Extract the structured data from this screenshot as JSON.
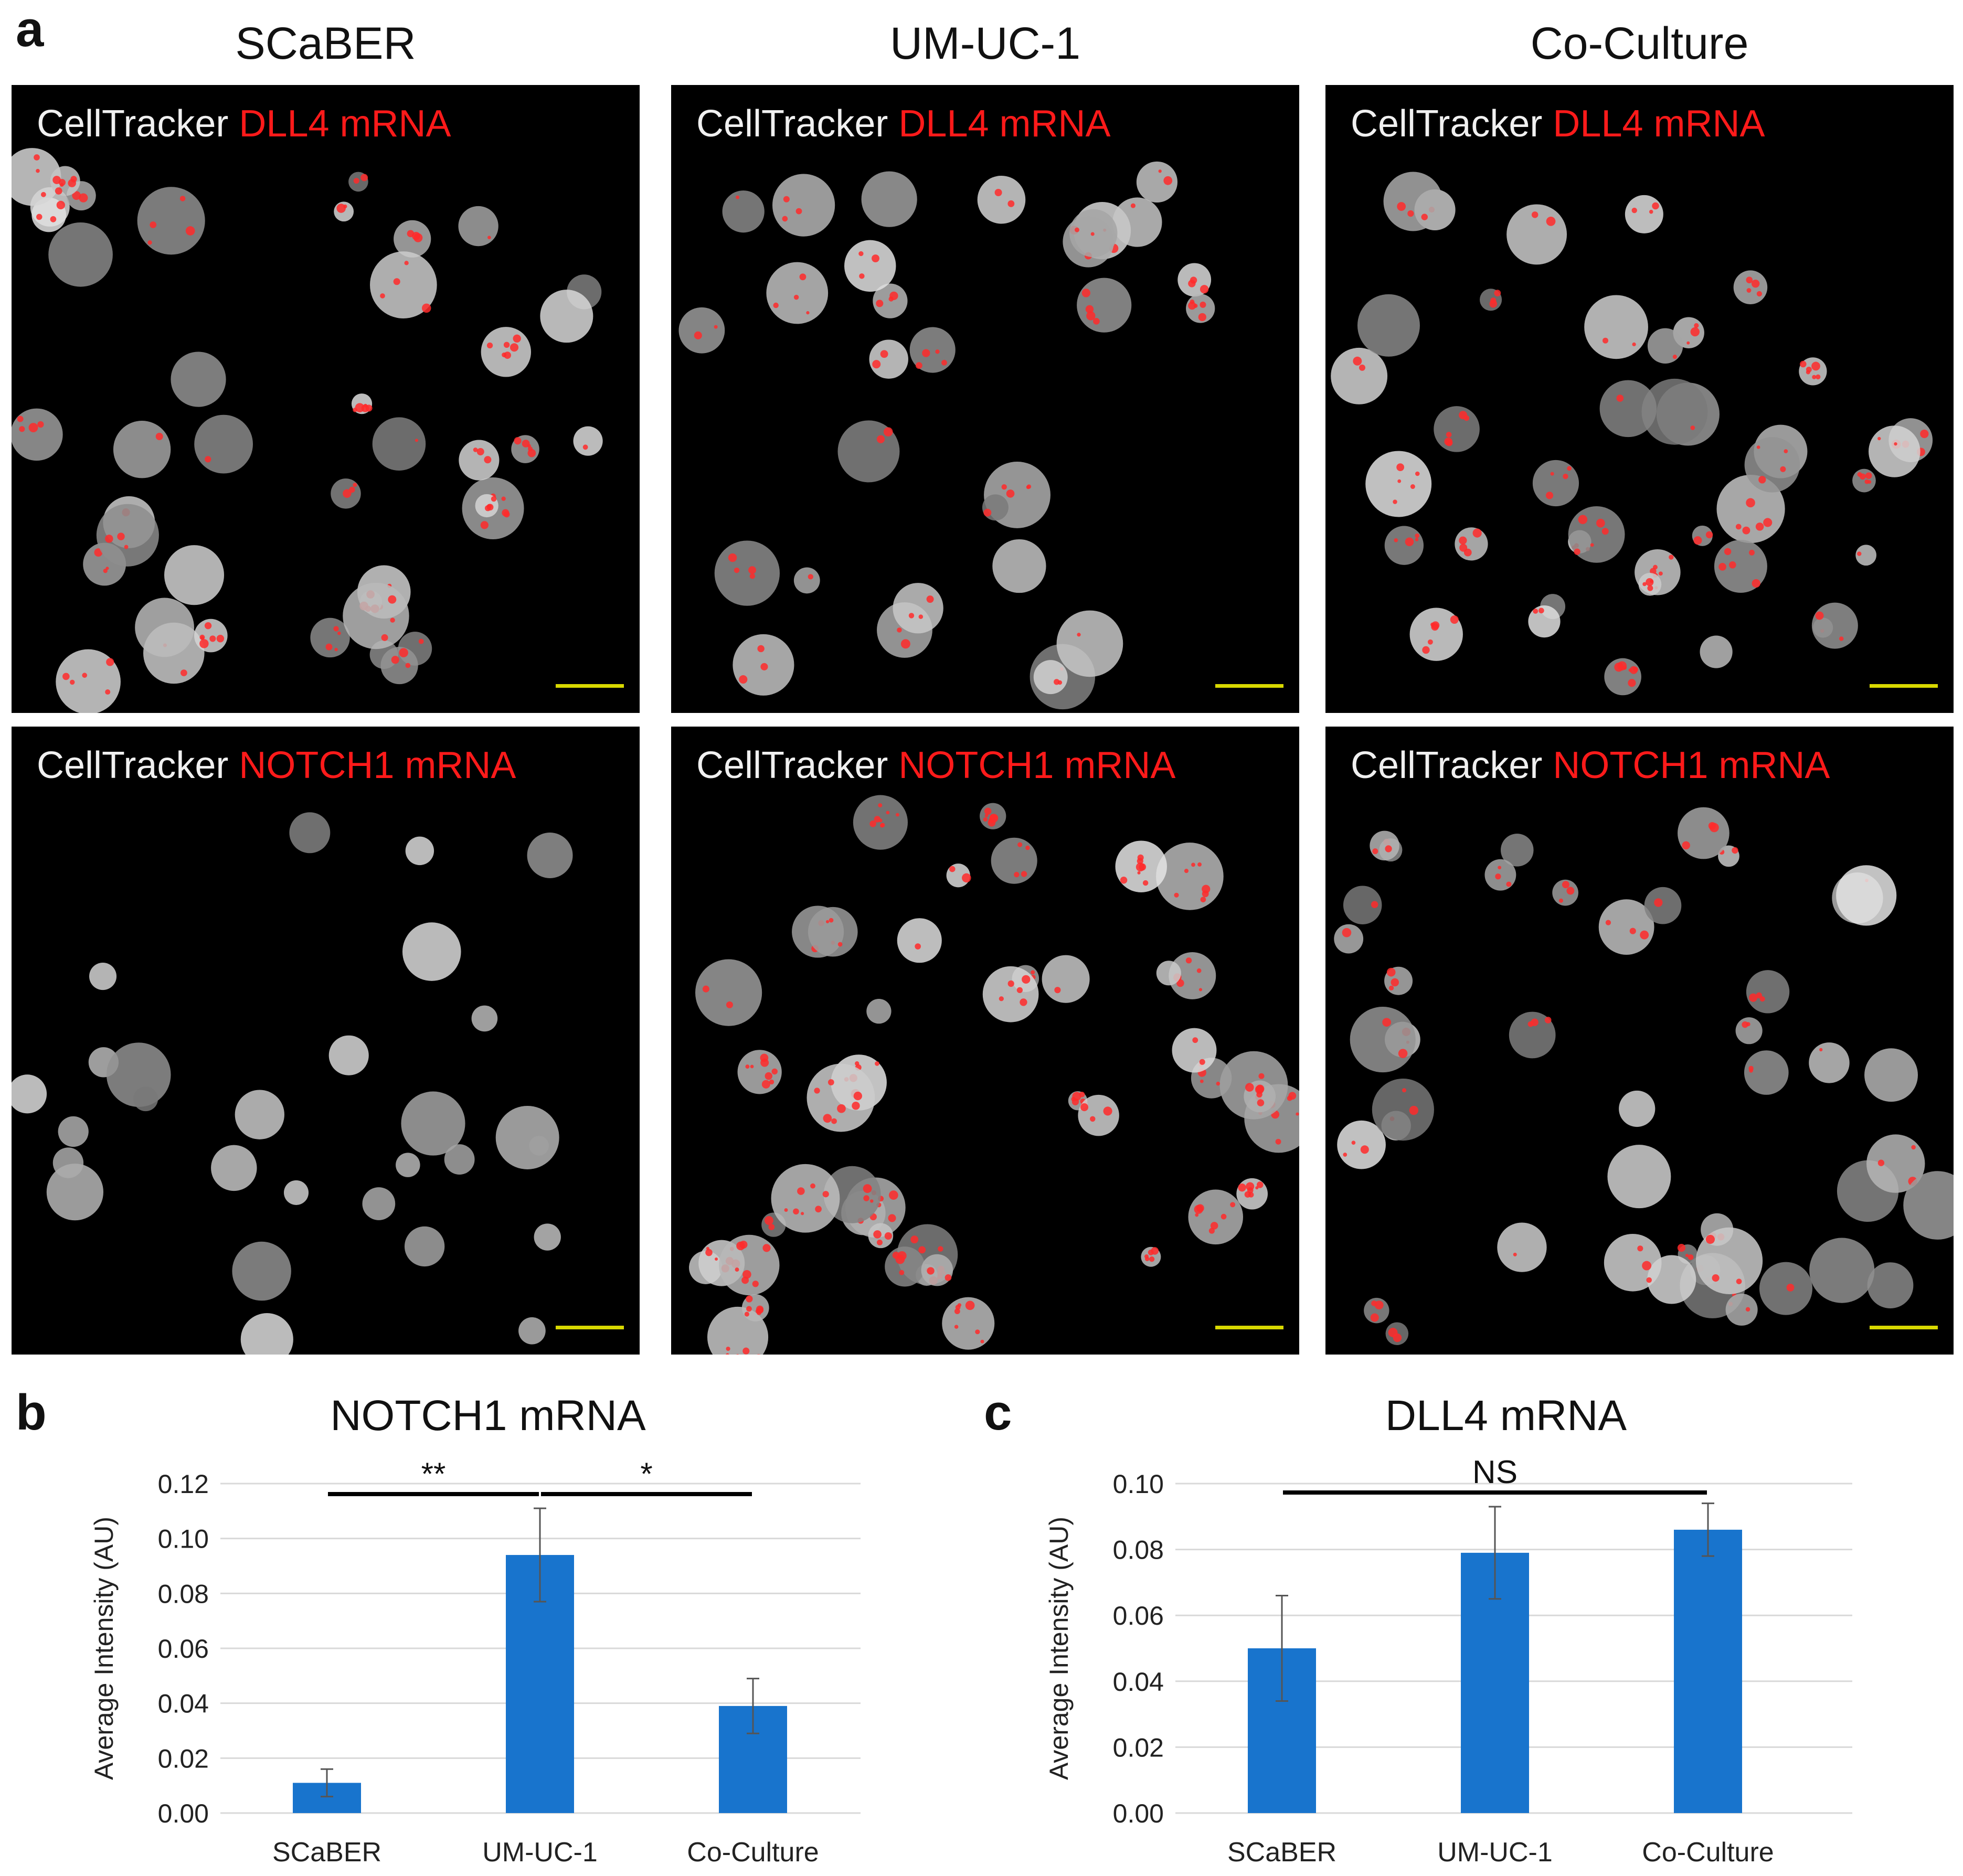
{
  "panel_labels": [
    "a",
    "b",
    "c"
  ],
  "columns": [
    "SCaBER",
    "UM-UC-1",
    "Co-Culture"
  ],
  "stain_prefix": "CellTracker",
  "rows": [
    {
      "marker": "DLL4 mRNA"
    },
    {
      "marker": "NOTCH1 mRNA"
    }
  ],
  "colors": {
    "bar": "#1874cd",
    "marker_text": "#ff1a1a",
    "scale_bar": "#d8d800",
    "grid": "#d9d9d9"
  },
  "chart_data": [
    {
      "type": "bar",
      "title": "NOTCH1 mRNA",
      "ylabel": "Average Intensity (AU)",
      "categories": [
        "SCaBER",
        "UM-UC-1",
        "Co-Culture"
      ],
      "values": [
        0.011,
        0.094,
        0.039
      ],
      "errors": [
        0.005,
        0.017,
        0.01
      ],
      "ylim": [
        0,
        0.12
      ],
      "yticks": [
        "0.00",
        "0.02",
        "0.04",
        "0.06",
        "0.08",
        "0.10",
        "0.12"
      ],
      "grid": true,
      "significance": [
        {
          "from": 0,
          "to": 1,
          "label": "**"
        },
        {
          "from": 1,
          "to": 2,
          "label": "*"
        }
      ]
    },
    {
      "type": "bar",
      "title": "DLL4 mRNA",
      "ylabel": "Average Intensity (AU)",
      "categories": [
        "SCaBER",
        "UM-UC-1",
        "Co-Culture"
      ],
      "values": [
        0.05,
        0.079,
        0.086
      ],
      "errors": [
        0.016,
        0.014,
        0.008
      ],
      "ylim": [
        0,
        0.1
      ],
      "yticks": [
        "0.00",
        "0.02",
        "0.04",
        "0.06",
        "0.08",
        "0.10"
      ],
      "grid": true,
      "significance": [
        {
          "from": 0,
          "to": 2,
          "label": "NS"
        }
      ]
    }
  ]
}
